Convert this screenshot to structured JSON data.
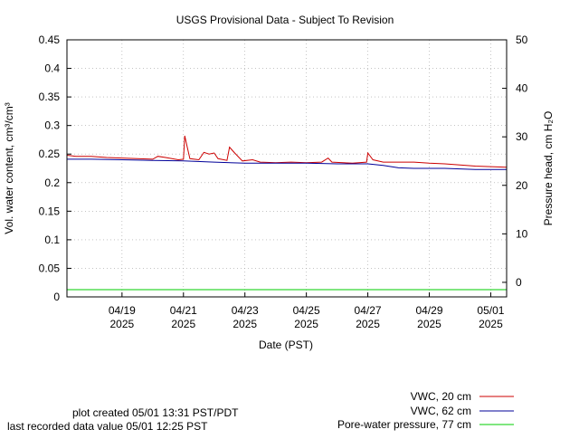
{
  "chart_data": {
    "type": "line",
    "title": "USGS Provisional Data - Subject To Revision",
    "xlabel": "Date (PST)",
    "ylabel": "Vol. water content, cm³/cm³",
    "ylabel_right": "Pressure head, cm H₂O",
    "x_range": [
      "2025-04-17 05:00",
      "2025-05-01 12:25"
    ],
    "ylim": [
      0,
      0.45
    ],
    "ylim_right": [
      -3,
      50
    ],
    "x_ticks": [
      {
        "date": "2025-04-19",
        "label": [
          "04/19",
          "2025"
        ]
      },
      {
        "date": "2025-04-21",
        "label": [
          "04/21",
          "2025"
        ]
      },
      {
        "date": "2025-04-23",
        "label": [
          "04/23",
          "2025"
        ]
      },
      {
        "date": "2025-04-25",
        "label": [
          "04/25",
          "2025"
        ]
      },
      {
        "date": "2025-04-27",
        "label": [
          "04/27",
          "2025"
        ]
      },
      {
        "date": "2025-04-29",
        "label": [
          "04/29",
          "2025"
        ]
      },
      {
        "date": "2025-05-01",
        "label": [
          "05/01",
          "2025"
        ]
      }
    ],
    "y_ticks": [
      "0",
      "0.05",
      "0.1",
      "0.15",
      "0.2",
      "0.25",
      "0.3",
      "0.35",
      "0.4",
      "0.45"
    ],
    "y_tick_values": [
      0,
      0.05,
      0.1,
      0.15,
      0.2,
      0.25,
      0.3,
      0.35,
      0.4,
      0.45
    ],
    "y_ticks_right": [
      "0",
      "10",
      "20",
      "30",
      "40",
      "50"
    ],
    "y_tick_values_right": [
      0,
      10,
      20,
      30,
      40,
      50
    ],
    "grid": true,
    "legend_position": "bottom-right",
    "series": [
      {
        "name": "VWC, 20 cm",
        "color": "#cc0000",
        "axis": "left",
        "points": [
          [
            "2025-04-17 05:00",
            0.248
          ],
          [
            "2025-04-17 12:00",
            0.246
          ],
          [
            "2025-04-18 00:00",
            0.246
          ],
          [
            "2025-04-18 12:00",
            0.244
          ],
          [
            "2025-04-19 00:00",
            0.243
          ],
          [
            "2025-04-19 12:00",
            0.242
          ],
          [
            "2025-04-20 00:00",
            0.241
          ],
          [
            "2025-04-20 04:00",
            0.246
          ],
          [
            "2025-04-20 10:00",
            0.244
          ],
          [
            "2025-04-20 20:00",
            0.24
          ],
          [
            "2025-04-21 00:00",
            0.241
          ],
          [
            "2025-04-21 01:00",
            0.282
          ],
          [
            "2025-04-21 03:00",
            0.262
          ],
          [
            "2025-04-21 05:00",
            0.242
          ],
          [
            "2025-04-21 12:00",
            0.24
          ],
          [
            "2025-04-21 16:00",
            0.253
          ],
          [
            "2025-04-21 20:00",
            0.25
          ],
          [
            "2025-04-22 00:00",
            0.252
          ],
          [
            "2025-04-22 03:00",
            0.242
          ],
          [
            "2025-04-22 10:00",
            0.239
          ],
          [
            "2025-04-22 12:00",
            0.262
          ],
          [
            "2025-04-22 16:00",
            0.252
          ],
          [
            "2025-04-22 22:00",
            0.238
          ],
          [
            "2025-04-23 06:00",
            0.24
          ],
          [
            "2025-04-23 12:00",
            0.236
          ],
          [
            "2025-04-24 00:00",
            0.235
          ],
          [
            "2025-04-24 12:00",
            0.236
          ],
          [
            "2025-04-25 00:00",
            0.235
          ],
          [
            "2025-04-25 12:00",
            0.236
          ],
          [
            "2025-04-25 17:00",
            0.243
          ],
          [
            "2025-04-25 20:00",
            0.236
          ],
          [
            "2025-04-26 12:00",
            0.234
          ],
          [
            "2025-04-26 23:00",
            0.236
          ],
          [
            "2025-04-27 00:00",
            0.252
          ],
          [
            "2025-04-27 04:00",
            0.24
          ],
          [
            "2025-04-27 12:00",
            0.236
          ],
          [
            "2025-04-28 00:00",
            0.236
          ],
          [
            "2025-04-28 12:00",
            0.236
          ],
          [
            "2025-04-29 00:00",
            0.234
          ],
          [
            "2025-04-29 12:00",
            0.233
          ],
          [
            "2025-04-30 00:00",
            0.231
          ],
          [
            "2025-04-30 12:00",
            0.229
          ],
          [
            "2025-05-01 00:00",
            0.228
          ],
          [
            "2025-05-01 12:25",
            0.227
          ]
        ]
      },
      {
        "name": "VWC, 62 cm",
        "color": "#000099",
        "axis": "left",
        "points": [
          [
            "2025-04-17 05:00",
            0.241
          ],
          [
            "2025-04-18 00:00",
            0.241
          ],
          [
            "2025-04-19 00:00",
            0.24
          ],
          [
            "2025-04-20 00:00",
            0.239
          ],
          [
            "2025-04-21 00:00",
            0.238
          ],
          [
            "2025-04-22 00:00",
            0.236
          ],
          [
            "2025-04-23 00:00",
            0.234
          ],
          [
            "2025-04-24 00:00",
            0.234
          ],
          [
            "2025-04-25 00:00",
            0.234
          ],
          [
            "2025-04-26 00:00",
            0.233
          ],
          [
            "2025-04-27 00:00",
            0.233
          ],
          [
            "2025-04-27 12:00",
            0.23
          ],
          [
            "2025-04-28 00:00",
            0.226
          ],
          [
            "2025-04-28 12:00",
            0.225
          ],
          [
            "2025-04-29 00:00",
            0.225
          ],
          [
            "2025-04-29 12:00",
            0.225
          ],
          [
            "2025-04-30 00:00",
            0.224
          ],
          [
            "2025-04-30 12:00",
            0.223
          ],
          [
            "2025-05-01 00:00",
            0.223
          ],
          [
            "2025-05-01 12:25",
            0.223
          ]
        ]
      },
      {
        "name": "Pore-water pressure, 77 cm",
        "color": "#00cc00",
        "axis": "right",
        "points": [
          [
            "2025-04-17 05:00",
            -1.5
          ],
          [
            "2025-04-21 00:00",
            -1.5
          ],
          [
            "2025-04-25 00:00",
            -1.5
          ],
          [
            "2025-04-29 00:00",
            -1.5
          ],
          [
            "2025-05-01 12:25",
            -1.5
          ]
        ]
      }
    ]
  },
  "footer": {
    "created": "plot created 05/01 13:31 PST/PDT",
    "last_value": "last recorded data value 05/01 12:25 PST"
  }
}
